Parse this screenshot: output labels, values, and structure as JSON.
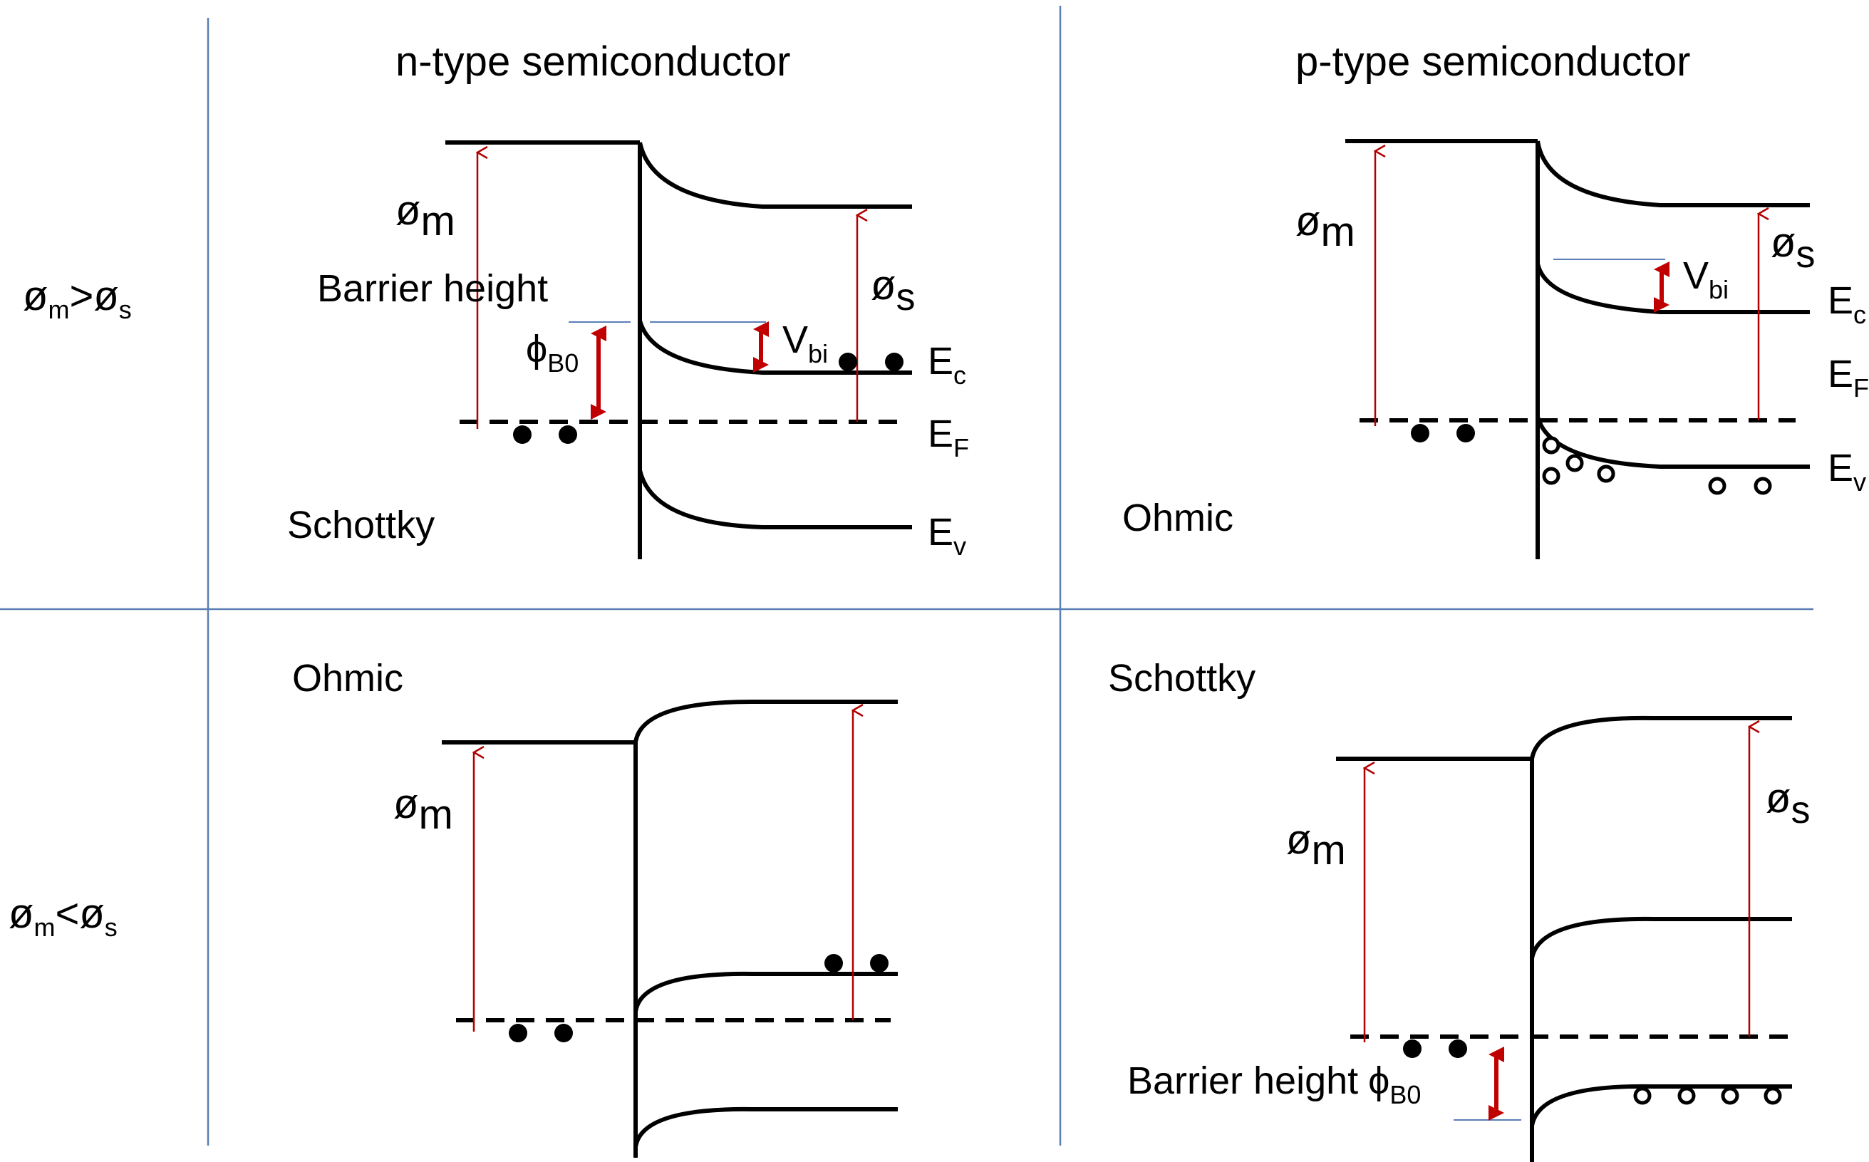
{
  "columns": {
    "n_type": "n-type semiconductor",
    "p_type": "p-type semiconductor"
  },
  "rows": {
    "top": {
      "phi": "ø",
      "m": "m",
      "op": ">",
      "s": "s"
    },
    "bottom": {
      "phi": "ø",
      "m": "m",
      "op": "<",
      "s": "s"
    }
  },
  "panels": {
    "n_top": {
      "contact": "Schottky",
      "barrier_label": "Barrier height",
      "phiB0": "ϕ",
      "phiB0_sub": "B0",
      "vbi": "V",
      "vbi_sub": "bi",
      "phi_m": "ø",
      "phi_m_sub": "m",
      "phi_s": "ø",
      "phi_s_sub": "s",
      "ec": "E",
      "ec_sub": "c",
      "ef": "E",
      "ef_sub": "F",
      "ev": "E",
      "ev_sub": "v"
    },
    "p_top": {
      "contact": "Ohmic",
      "vbi": "V",
      "vbi_sub": "bi",
      "phi_m": "ø",
      "phi_m_sub": "m",
      "phi_s": "ø",
      "phi_s_sub": "s",
      "ec": "E",
      "ec_sub": "c",
      "ef": "E",
      "ef_sub": "F",
      "ev": "E",
      "ev_sub": "v"
    },
    "n_bottom": {
      "contact": "Ohmic",
      "phi_m": "ø",
      "phi_m_sub": "m"
    },
    "p_bottom": {
      "contact": "Schottky",
      "barrier_label": "Barrier height",
      "phiB0": "ϕ",
      "phiB0_sub": "B0",
      "phi_m": "ø",
      "phi_m_sub": "m",
      "phi_s": "ø",
      "phi_s_sub": "s"
    }
  },
  "colors": {
    "grid_lines": "#5a7fb5",
    "work_function_arrows": "#b00000",
    "bold_arrows": "#c00000",
    "bands": "#000000"
  }
}
